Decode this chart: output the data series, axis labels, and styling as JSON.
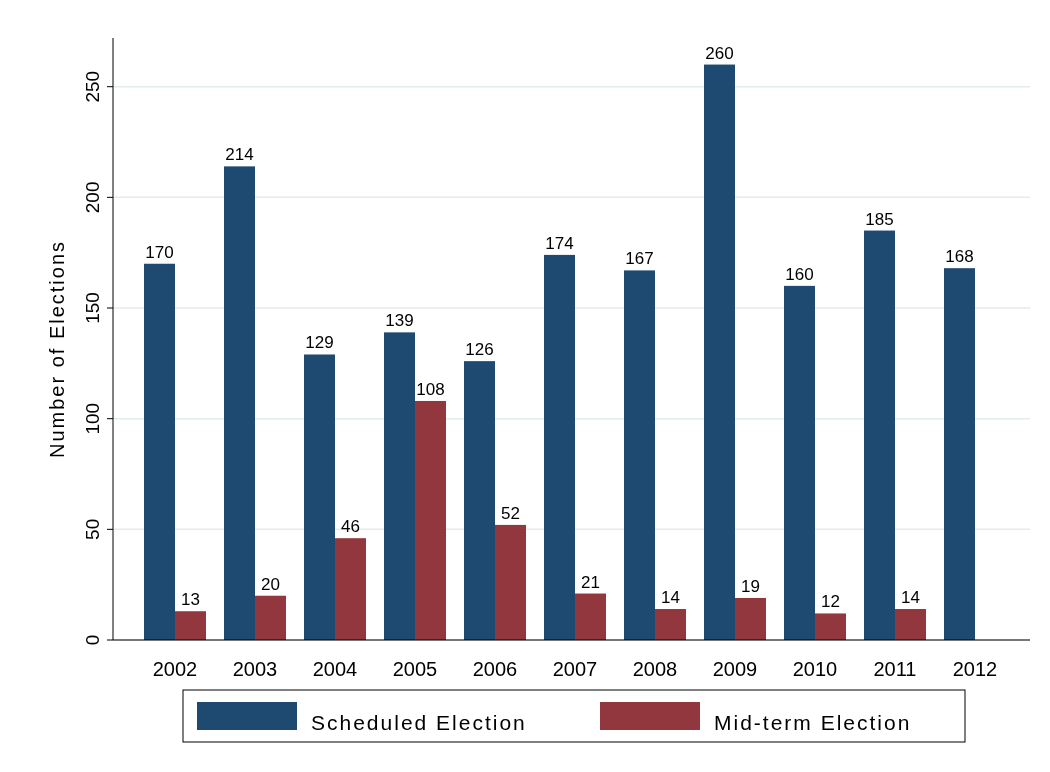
{
  "chart_data": {
    "type": "bar",
    "ylabel": "Number of Elections",
    "categories": [
      "2002",
      "2003",
      "2004",
      "2005",
      "2006",
      "2007",
      "2008",
      "2009",
      "2010",
      "2011",
      "2012"
    ],
    "series": [
      {
        "name": "Scheduled Election",
        "color": "#1e4a72",
        "values": [
          170,
          214,
          129,
          139,
          126,
          174,
          167,
          260,
          160,
          185,
          168
        ]
      },
      {
        "name": "Mid-term Election",
        "color": "#93373e",
        "values": [
          13,
          20,
          46,
          108,
          52,
          21,
          14,
          19,
          12,
          14,
          null
        ]
      }
    ],
    "ylim": [
      0,
      272
    ],
    "yticks": [
      0,
      50,
      100,
      150,
      200,
      250
    ],
    "grid": "y",
    "legend": "bottom",
    "data_labels": true
  }
}
